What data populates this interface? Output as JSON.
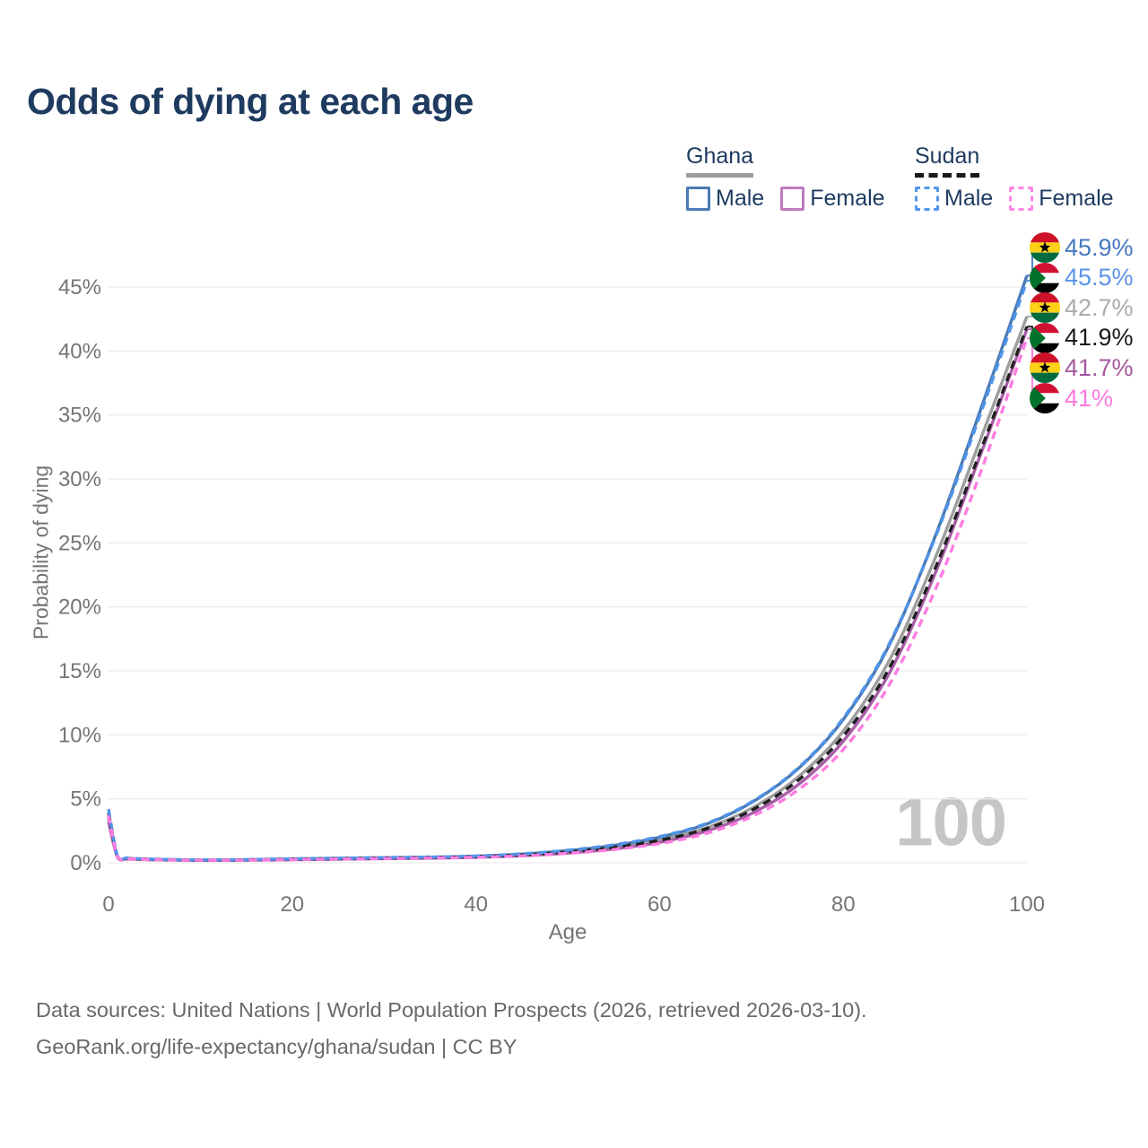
{
  "title": "Odds of dying at each age",
  "watermark": "100",
  "legend": {
    "groups": [
      {
        "name": "Ghana",
        "line_style": "solid",
        "underline_color": "#9e9e9e",
        "items": [
          {
            "label": "Male",
            "color": "#4a7ab5"
          },
          {
            "label": "Female",
            "color": "#bd7abd"
          }
        ]
      },
      {
        "name": "Sudan",
        "line_style": "dashed",
        "underline_color": "#1a1a1a",
        "items": [
          {
            "label": "Male",
            "color": "#5295ea"
          },
          {
            "label": "Female",
            "color": "#ff85e6"
          }
        ]
      }
    ]
  },
  "flags": {
    "ghana": {
      "red": "#ce1126",
      "gold": "#fcd116",
      "green": "#006b3f",
      "star": "#000000"
    },
    "sudan": {
      "red": "#d21034",
      "white": "#ffffff",
      "black": "#000000",
      "green": "#007229"
    }
  },
  "chart_data": {
    "type": "line",
    "title": "Odds of dying at each age",
    "xlabel": "Age",
    "ylabel": "Probability of dying",
    "xlim": [
      0,
      100
    ],
    "ylim": [
      0,
      48
    ],
    "grid": true,
    "x_ticks": [
      0,
      20,
      40,
      60,
      80,
      100
    ],
    "y_ticks": [
      "0%",
      "5%",
      "10%",
      "15%",
      "20%",
      "25%",
      "30%",
      "35%",
      "40%",
      "45%"
    ],
    "legend_position": "top-right",
    "series": [
      {
        "id": "ghana-male",
        "name": "Ghana Male",
        "country": "Ghana",
        "sex": "Male",
        "color": "#4a7ab5",
        "dash": false,
        "end_label": {
          "text": "45.9%",
          "color": "#4878c0",
          "flag": "ghana"
        },
        "points": [
          [
            0,
            3.6
          ],
          [
            1,
            0.45
          ],
          [
            2,
            0.35
          ],
          [
            3,
            0.31
          ],
          [
            4,
            0.29
          ],
          [
            5,
            0.27
          ],
          [
            10,
            0.22
          ],
          [
            15,
            0.24
          ],
          [
            20,
            0.3
          ],
          [
            25,
            0.35
          ],
          [
            30,
            0.4
          ],
          [
            35,
            0.44
          ],
          [
            40,
            0.52
          ],
          [
            45,
            0.68
          ],
          [
            50,
            0.95
          ],
          [
            55,
            1.35
          ],
          [
            60,
            2.0
          ],
          [
            65,
            3.0
          ],
          [
            70,
            4.7
          ],
          [
            75,
            7.3
          ],
          [
            80,
            11.2
          ],
          [
            85,
            17.0
          ],
          [
            90,
            25.5
          ],
          [
            95,
            35.5
          ],
          [
            100,
            45.9
          ]
        ]
      },
      {
        "id": "sudan-male",
        "name": "Sudan Male",
        "country": "Sudan",
        "sex": "Male",
        "color": "#4f94e8",
        "dash": true,
        "end_label": {
          "text": "45.5%",
          "color": "#5b94e8",
          "flag": "sudan"
        },
        "points": [
          [
            0,
            4.2
          ],
          [
            1,
            0.5
          ],
          [
            2,
            0.38
          ],
          [
            3,
            0.33
          ],
          [
            4,
            0.3
          ],
          [
            5,
            0.28
          ],
          [
            10,
            0.23
          ],
          [
            15,
            0.25
          ],
          [
            20,
            0.31
          ],
          [
            25,
            0.36
          ],
          [
            30,
            0.41
          ],
          [
            35,
            0.45
          ],
          [
            40,
            0.53
          ],
          [
            45,
            0.7
          ],
          [
            50,
            0.98
          ],
          [
            55,
            1.4
          ],
          [
            60,
            2.05
          ],
          [
            65,
            3.05
          ],
          [
            70,
            4.75
          ],
          [
            75,
            7.35
          ],
          [
            80,
            11.3
          ],
          [
            85,
            17.1
          ],
          [
            90,
            25.4
          ],
          [
            95,
            35.2
          ],
          [
            100,
            45.5
          ]
        ]
      },
      {
        "id": "ghana-all",
        "name": "Ghana",
        "country": "Ghana",
        "sex": "Both",
        "color": "#9e9e9e",
        "dash": false,
        "end_label": {
          "text": "42.7%",
          "color": "#ababab",
          "flag": "ghana"
        },
        "points": [
          [
            0,
            3.4
          ],
          [
            1,
            0.42
          ],
          [
            2,
            0.32
          ],
          [
            3,
            0.29
          ],
          [
            4,
            0.27
          ],
          [
            5,
            0.25
          ],
          [
            10,
            0.2
          ],
          [
            15,
            0.22
          ],
          [
            20,
            0.27
          ],
          [
            25,
            0.31
          ],
          [
            30,
            0.36
          ],
          [
            35,
            0.4
          ],
          [
            40,
            0.47
          ],
          [
            45,
            0.6
          ],
          [
            50,
            0.84
          ],
          [
            55,
            1.2
          ],
          [
            60,
            1.78
          ],
          [
            65,
            2.7
          ],
          [
            70,
            4.25
          ],
          [
            75,
            6.65
          ],
          [
            80,
            10.3
          ],
          [
            85,
            15.8
          ],
          [
            90,
            23.8
          ],
          [
            95,
            33.2
          ],
          [
            100,
            42.7
          ]
        ]
      },
      {
        "id": "sudan-all",
        "name": "Sudan",
        "country": "Sudan",
        "sex": "Both",
        "color": "#1f1f1f",
        "dash": true,
        "end_label": {
          "text": "41.9%",
          "color": "#1a1a1a",
          "flag": "sudan"
        },
        "points": [
          [
            0,
            3.9
          ],
          [
            1,
            0.46
          ],
          [
            2,
            0.35
          ],
          [
            3,
            0.31
          ],
          [
            4,
            0.28
          ],
          [
            5,
            0.26
          ],
          [
            10,
            0.21
          ],
          [
            15,
            0.23
          ],
          [
            20,
            0.28
          ],
          [
            25,
            0.32
          ],
          [
            30,
            0.37
          ],
          [
            35,
            0.41
          ],
          [
            40,
            0.48
          ],
          [
            45,
            0.61
          ],
          [
            50,
            0.85
          ],
          [
            55,
            1.21
          ],
          [
            60,
            1.76
          ],
          [
            65,
            2.65
          ],
          [
            70,
            4.1
          ],
          [
            75,
            6.4
          ],
          [
            80,
            9.9
          ],
          [
            85,
            15.2
          ],
          [
            90,
            23.0
          ],
          [
            95,
            32.3
          ],
          [
            100,
            41.9
          ]
        ]
      },
      {
        "id": "ghana-female",
        "name": "Ghana Female",
        "country": "Ghana",
        "sex": "Female",
        "color": "#a95fa8",
        "dash": false,
        "end_label": {
          "text": "41.7%",
          "color": "#a4599d",
          "flag": "ghana"
        },
        "points": [
          [
            0,
            3.2
          ],
          [
            1,
            0.4
          ],
          [
            2,
            0.3
          ],
          [
            3,
            0.27
          ],
          [
            4,
            0.25
          ],
          [
            5,
            0.23
          ],
          [
            10,
            0.19
          ],
          [
            15,
            0.2
          ],
          [
            20,
            0.24
          ],
          [
            25,
            0.28
          ],
          [
            30,
            0.32
          ],
          [
            35,
            0.36
          ],
          [
            40,
            0.43
          ],
          [
            45,
            0.55
          ],
          [
            50,
            0.76
          ],
          [
            55,
            1.08
          ],
          [
            60,
            1.6
          ],
          [
            65,
            2.45
          ],
          [
            70,
            3.85
          ],
          [
            75,
            6.05
          ],
          [
            80,
            9.5
          ],
          [
            85,
            14.8
          ],
          [
            90,
            22.6
          ],
          [
            95,
            32.0
          ],
          [
            100,
            41.7
          ]
        ]
      },
      {
        "id": "sudan-female",
        "name": "Sudan Female",
        "country": "Sudan",
        "sex": "Female",
        "color": "#ff7ce0",
        "dash": true,
        "end_label": {
          "text": "41%",
          "color": "#ff7ae0",
          "flag": "sudan"
        },
        "points": [
          [
            0,
            3.7
          ],
          [
            1,
            0.44
          ],
          [
            2,
            0.33
          ],
          [
            3,
            0.29
          ],
          [
            4,
            0.26
          ],
          [
            5,
            0.24
          ],
          [
            10,
            0.2
          ],
          [
            15,
            0.21
          ],
          [
            20,
            0.25
          ],
          [
            25,
            0.29
          ],
          [
            30,
            0.33
          ],
          [
            35,
            0.37
          ],
          [
            40,
            0.43
          ],
          [
            45,
            0.54
          ],
          [
            50,
            0.74
          ],
          [
            55,
            1.04
          ],
          [
            60,
            1.5
          ],
          [
            65,
            2.28
          ],
          [
            70,
            3.6
          ],
          [
            75,
            5.65
          ],
          [
            80,
            8.85
          ],
          [
            85,
            13.9
          ],
          [
            90,
            21.3
          ],
          [
            95,
            30.6
          ],
          [
            100,
            41.0
          ]
        ]
      }
    ]
  },
  "footer": {
    "line1": "Data sources: United Nations | World Population Prospects (2026, retrieved 2026-03-10).",
    "line2": "GeoRank.org/life-expectancy/ghana/sudan | CC BY"
  }
}
